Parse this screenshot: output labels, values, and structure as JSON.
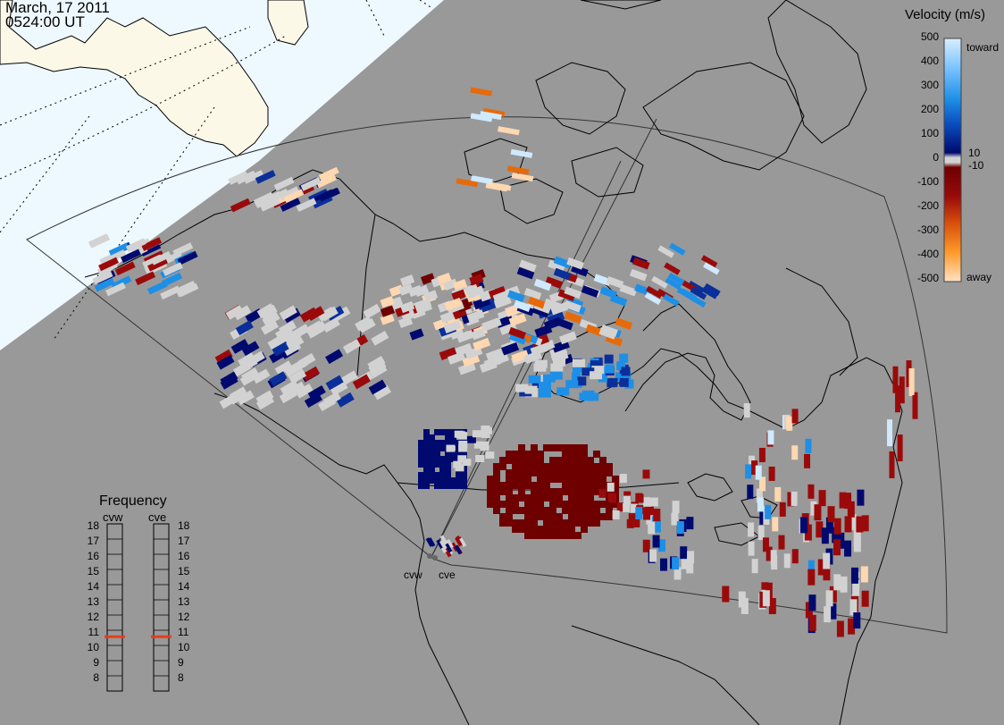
{
  "header": {
    "date": "March, 17 2011",
    "time": "0524:00 UT"
  },
  "velocity_scale": {
    "title": "Velocity (m/s)",
    "ticks": [
      "500",
      "400",
      "300",
      "200",
      "100",
      "10",
      "0",
      "-10",
      "-100",
      "-200",
      "-300",
      "-400",
      "-500"
    ],
    "toward_label": "toward",
    "away_label": "away",
    "colors": {
      "toward_light": "#cfe9ff",
      "toward_mid": "#1e8fe6",
      "toward_dark": "#0a2f9a",
      "toward_darkest": "#000a6e",
      "zero_gray": "#d2d2d2",
      "away_darkest": "#6e0000",
      "away_dark": "#9a0a0a",
      "away_mid": "#e66a0a",
      "away_light": "#ffd7b0"
    }
  },
  "frequency_panel": {
    "title": "Frequency",
    "radars": [
      {
        "name": "cvw",
        "frequency_mhz": 10.6
      },
      {
        "name": "cve",
        "frequency_mhz": 10.6
      }
    ],
    "ticks": [
      "18",
      "17",
      "16",
      "15",
      "14",
      "13",
      "12",
      "11",
      "10",
      "9",
      "8"
    ],
    "marker_color": "#e0401a"
  },
  "radar_sites": [
    "cvw",
    "cve"
  ],
  "map_colors": {
    "ocean_night": "#999999",
    "land_day": "#fbf8e8",
    "ocean_day": "#eef8ff"
  }
}
